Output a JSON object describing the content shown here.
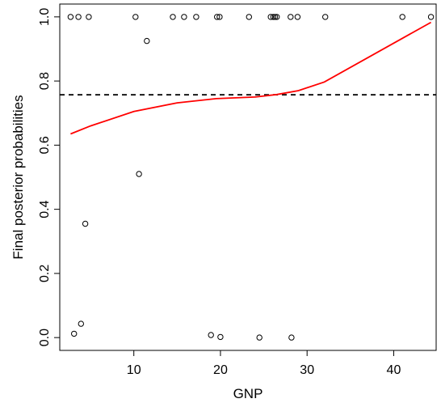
{
  "chart_data": {
    "type": "scatter",
    "xlabel": "GNP",
    "ylabel": "Final posterior probabilities",
    "xlim": [
      1.45,
      44.9
    ],
    "ylim": [
      -0.04,
      1.04
    ],
    "xticks": [
      10,
      20,
      30,
      40
    ],
    "yticks": [
      0.0,
      0.2,
      0.4,
      0.6,
      0.8,
      1.0
    ],
    "xtick_labels": [
      "10",
      "20",
      "30",
      "40"
    ],
    "ytick_labels": [
      "0.0",
      "0.2",
      "0.4",
      "0.6",
      "0.8",
      "1.0"
    ],
    "points": [
      {
        "x": 2.7,
        "y": 1.0
      },
      {
        "x": 3.6,
        "y": 1.0
      },
      {
        "x": 4.8,
        "y": 1.0
      },
      {
        "x": 10.2,
        "y": 1.0
      },
      {
        "x": 14.5,
        "y": 1.0
      },
      {
        "x": 15.8,
        "y": 1.0
      },
      {
        "x": 17.2,
        "y": 1.0
      },
      {
        "x": 19.6,
        "y": 1.0
      },
      {
        "x": 19.9,
        "y": 1.0
      },
      {
        "x": 23.3,
        "y": 1.0
      },
      {
        "x": 25.8,
        "y": 1.0
      },
      {
        "x": 26.1,
        "y": 1.0
      },
      {
        "x": 26.3,
        "y": 1.0
      },
      {
        "x": 26.5,
        "y": 1.0
      },
      {
        "x": 28.1,
        "y": 1.0
      },
      {
        "x": 28.9,
        "y": 1.0
      },
      {
        "x": 32.1,
        "y": 1.0
      },
      {
        "x": 41.0,
        "y": 1.0
      },
      {
        "x": 44.3,
        "y": 1.0
      },
      {
        "x": 11.5,
        "y": 0.925
      },
      {
        "x": 10.6,
        "y": 0.51
      },
      {
        "x": 4.4,
        "y": 0.355
      },
      {
        "x": 3.9,
        "y": 0.043
      },
      {
        "x": 3.1,
        "y": 0.012
      },
      {
        "x": 18.9,
        "y": 0.008
      },
      {
        "x": 20.0,
        "y": 0.002
      },
      {
        "x": 24.5,
        "y": 0.0
      },
      {
        "x": 28.2,
        "y": 0.0
      }
    ],
    "series": [
      {
        "type": "line",
        "color": "#ff0000",
        "x": [
          2.7,
          5.0,
          10.0,
          15.0,
          19.5,
          24.0,
          26.5,
          29.0,
          32.0,
          44.3
        ],
        "y": [
          0.635,
          0.66,
          0.705,
          0.732,
          0.745,
          0.75,
          0.758,
          0.77,
          0.797,
          0.983
        ]
      }
    ],
    "hline": {
      "y": 0.757,
      "style": "dashed",
      "color": "#000000"
    },
    "grid": false,
    "colors": {
      "points": "#000000",
      "curve": "#ff0000",
      "reference_line": "#000000"
    }
  }
}
